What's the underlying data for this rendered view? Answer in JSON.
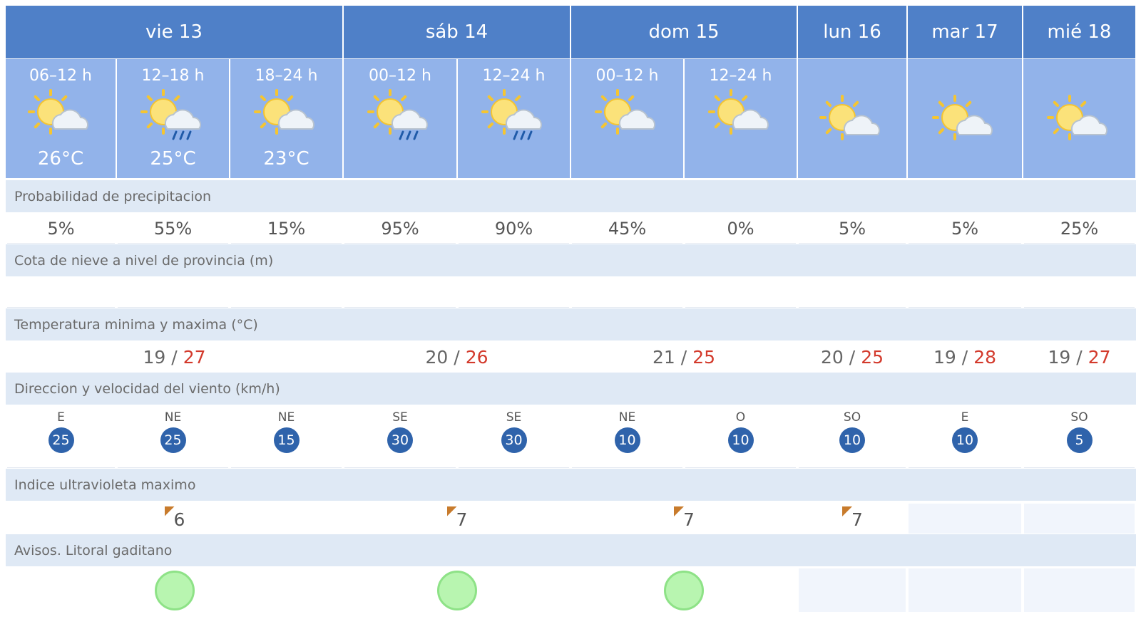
{
  "days": [
    {
      "label": "vie 13",
      "periods": [
        {
          "label": "06–12 h",
          "temp": "26°C"
        },
        {
          "label": "12–18 h",
          "temp": "25°C"
        },
        {
          "label": "18–24 h",
          "temp": "23°C"
        }
      ]
    },
    {
      "label": "sáb 14",
      "periods": [
        {
          "label": "00–12 h"
        },
        {
          "label": "12–24 h"
        }
      ]
    },
    {
      "label": "dom 15",
      "periods": [
        {
          "label": "00–12 h"
        },
        {
          "label": "12–24 h"
        }
      ]
    },
    {
      "label": "lun 16",
      "periods": []
    },
    {
      "label": "mar 17",
      "periods": []
    },
    {
      "label": "mié 18",
      "periods": []
    }
  ],
  "precipitation": {
    "title": "Probabilidad de precipitacion",
    "values": [
      "5%",
      "55%",
      "15%",
      "95%",
      "90%",
      "45%",
      "0%",
      "5%",
      "5%",
      "25%"
    ]
  },
  "snow": {
    "title": "Cota de nieve a nivel de provincia (m)"
  },
  "temperature": {
    "title": "Temperatura minima y maxima (°C)",
    "separator": "/",
    "values": [
      {
        "min": 19,
        "max": 27
      },
      {
        "min": 20,
        "max": 26
      },
      {
        "min": 21,
        "max": 25
      },
      {
        "min": 20,
        "max": 25
      },
      {
        "min": 19,
        "max": 28
      },
      {
        "min": 19,
        "max": 27
      }
    ]
  },
  "wind": {
    "title": "Direccion y velocidad del viento (km/h)",
    "values": [
      {
        "direction": "E",
        "speed": 25
      },
      {
        "direction": "NE",
        "speed": 25
      },
      {
        "direction": "NE",
        "speed": 15
      },
      {
        "direction": "SE",
        "speed": 30
      },
      {
        "direction": "SE",
        "speed": 30
      },
      {
        "direction": "NE",
        "speed": 10
      },
      {
        "direction": "O",
        "speed": 10
      },
      {
        "direction": "SO",
        "speed": 10
      },
      {
        "direction": "E",
        "speed": 10
      },
      {
        "direction": "SO",
        "speed": 5
      }
    ]
  },
  "uv": {
    "title": "Indice ultravioleta maximo",
    "values": [
      6,
      7,
      7,
      7
    ]
  },
  "warnings": {
    "title": "Avisos. Litoral gaditano"
  }
}
